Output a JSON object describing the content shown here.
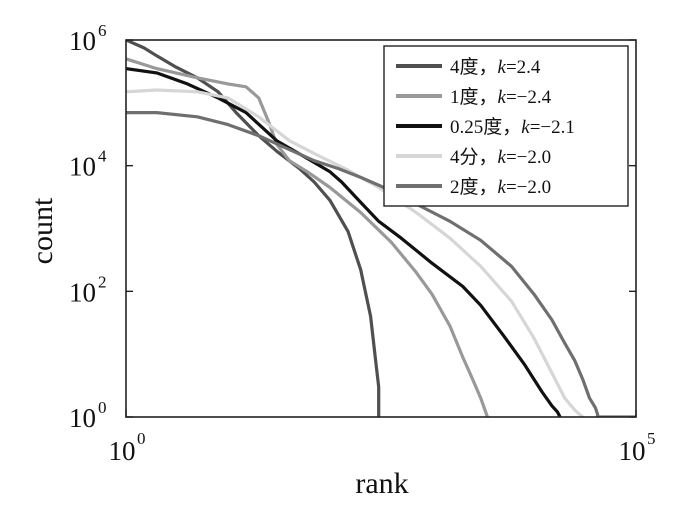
{
  "chart_data": {
    "type": "line",
    "xlabel": "rank",
    "ylabel": "count",
    "x_scale": "log",
    "y_scale": "log",
    "xlim": [
      1,
      100000
    ],
    "ylim": [
      1,
      1000000
    ],
    "grid": false,
    "legend_position": "top-right",
    "x_ticks": [
      {
        "base": "10",
        "exp": "0",
        "value": 1
      },
      {
        "base": "10",
        "exp": "5",
        "value": 100000
      }
    ],
    "y_ticks": [
      {
        "base": "10",
        "exp": "0",
        "value": 1
      },
      {
        "base": "10",
        "exp": "2",
        "value": 100
      },
      {
        "base": "10",
        "exp": "4",
        "value": 10000
      },
      {
        "base": "10",
        "exp": "6",
        "value": 1000000
      }
    ],
    "series": [
      {
        "legend": {
          "name": "4度，",
          "k_symbol": "k",
          "k_value": "=2.4"
        },
        "color": "#4f4f4f",
        "x": [
          1,
          1.5,
          2,
          3,
          5,
          8,
          12,
          20,
          30,
          50,
          70,
          100,
          150,
          200,
          250,
          280,
          300,
          300
        ],
        "y": [
          1000000,
          750000,
          560000,
          380000,
          250000,
          150000,
          70000,
          30000,
          17000,
          9000,
          5500,
          2800,
          900,
          220,
          40,
          8,
          3,
          1
        ]
      },
      {
        "legend": {
          "name": "1度，",
          "k_symbol": "k",
          "k_value": "=−2.4"
        },
        "color": "#999999",
        "x": [
          1,
          2,
          5,
          10,
          15,
          20,
          25,
          30,
          40,
          60,
          100,
          200,
          400,
          700,
          1000,
          1500,
          2000,
          2500,
          3000,
          3300,
          3500
        ],
        "y": [
          500000,
          350000,
          250000,
          200000,
          180000,
          120000,
          50000,
          22000,
          12000,
          8000,
          4500,
          1800,
          600,
          200,
          90,
          28,
          9,
          4,
          2,
          1.3,
          1
        ]
      },
      {
        "legend": {
          "name": "0.25度，",
          "k_symbol": "k",
          "k_value": "=−2.1"
        },
        "color": "#111111",
        "x": [
          1,
          2,
          4,
          8,
          15,
          30,
          60,
          100,
          130,
          200,
          300,
          500,
          1000,
          2000,
          3000,
          5000,
          8000,
          12000,
          15000,
          17000,
          18000
        ],
        "y": [
          350000,
          300000,
          200000,
          120000,
          70000,
          25000,
          13000,
          8000,
          5500,
          2600,
          1300,
          700,
          280,
          120,
          60,
          20,
          7,
          2.5,
          1.5,
          1.2,
          1
        ]
      },
      {
        "legend": {
          "name": "4分，",
          "k_symbol": "k",
          "k_value": "=−2.0"
        },
        "color": "#d6d6d6",
        "x": [
          1,
          2,
          5,
          10,
          20,
          40,
          80,
          150,
          300,
          700,
          1500,
          3000,
          6000,
          10000,
          15000,
          20000,
          25000,
          28000,
          30000
        ],
        "y": [
          150000,
          160000,
          150000,
          120000,
          60000,
          25000,
          14000,
          8500,
          4500,
          1800,
          700,
          250,
          70,
          18,
          5,
          2,
          1.3,
          1.1,
          1
        ]
      },
      {
        "legend": {
          "name": "2度，",
          "k_symbol": "k",
          "k_value": "=−2.0"
        },
        "color": "#6f6f6f",
        "x": [
          1,
          2,
          5,
          10,
          20,
          40,
          70,
          120,
          200,
          400,
          800,
          1500,
          3000,
          6000,
          10000,
          15000,
          20000,
          25000,
          30000,
          35000,
          40000,
          42000,
          42000,
          100000
        ],
        "y": [
          70000,
          70000,
          60000,
          45000,
          30000,
          18000,
          12000,
          9000,
          6500,
          4000,
          2200,
          1300,
          650,
          250,
          90,
          35,
          15,
          8,
          4,
          2,
          1.4,
          1.1,
          1,
          1
        ]
      }
    ]
  }
}
